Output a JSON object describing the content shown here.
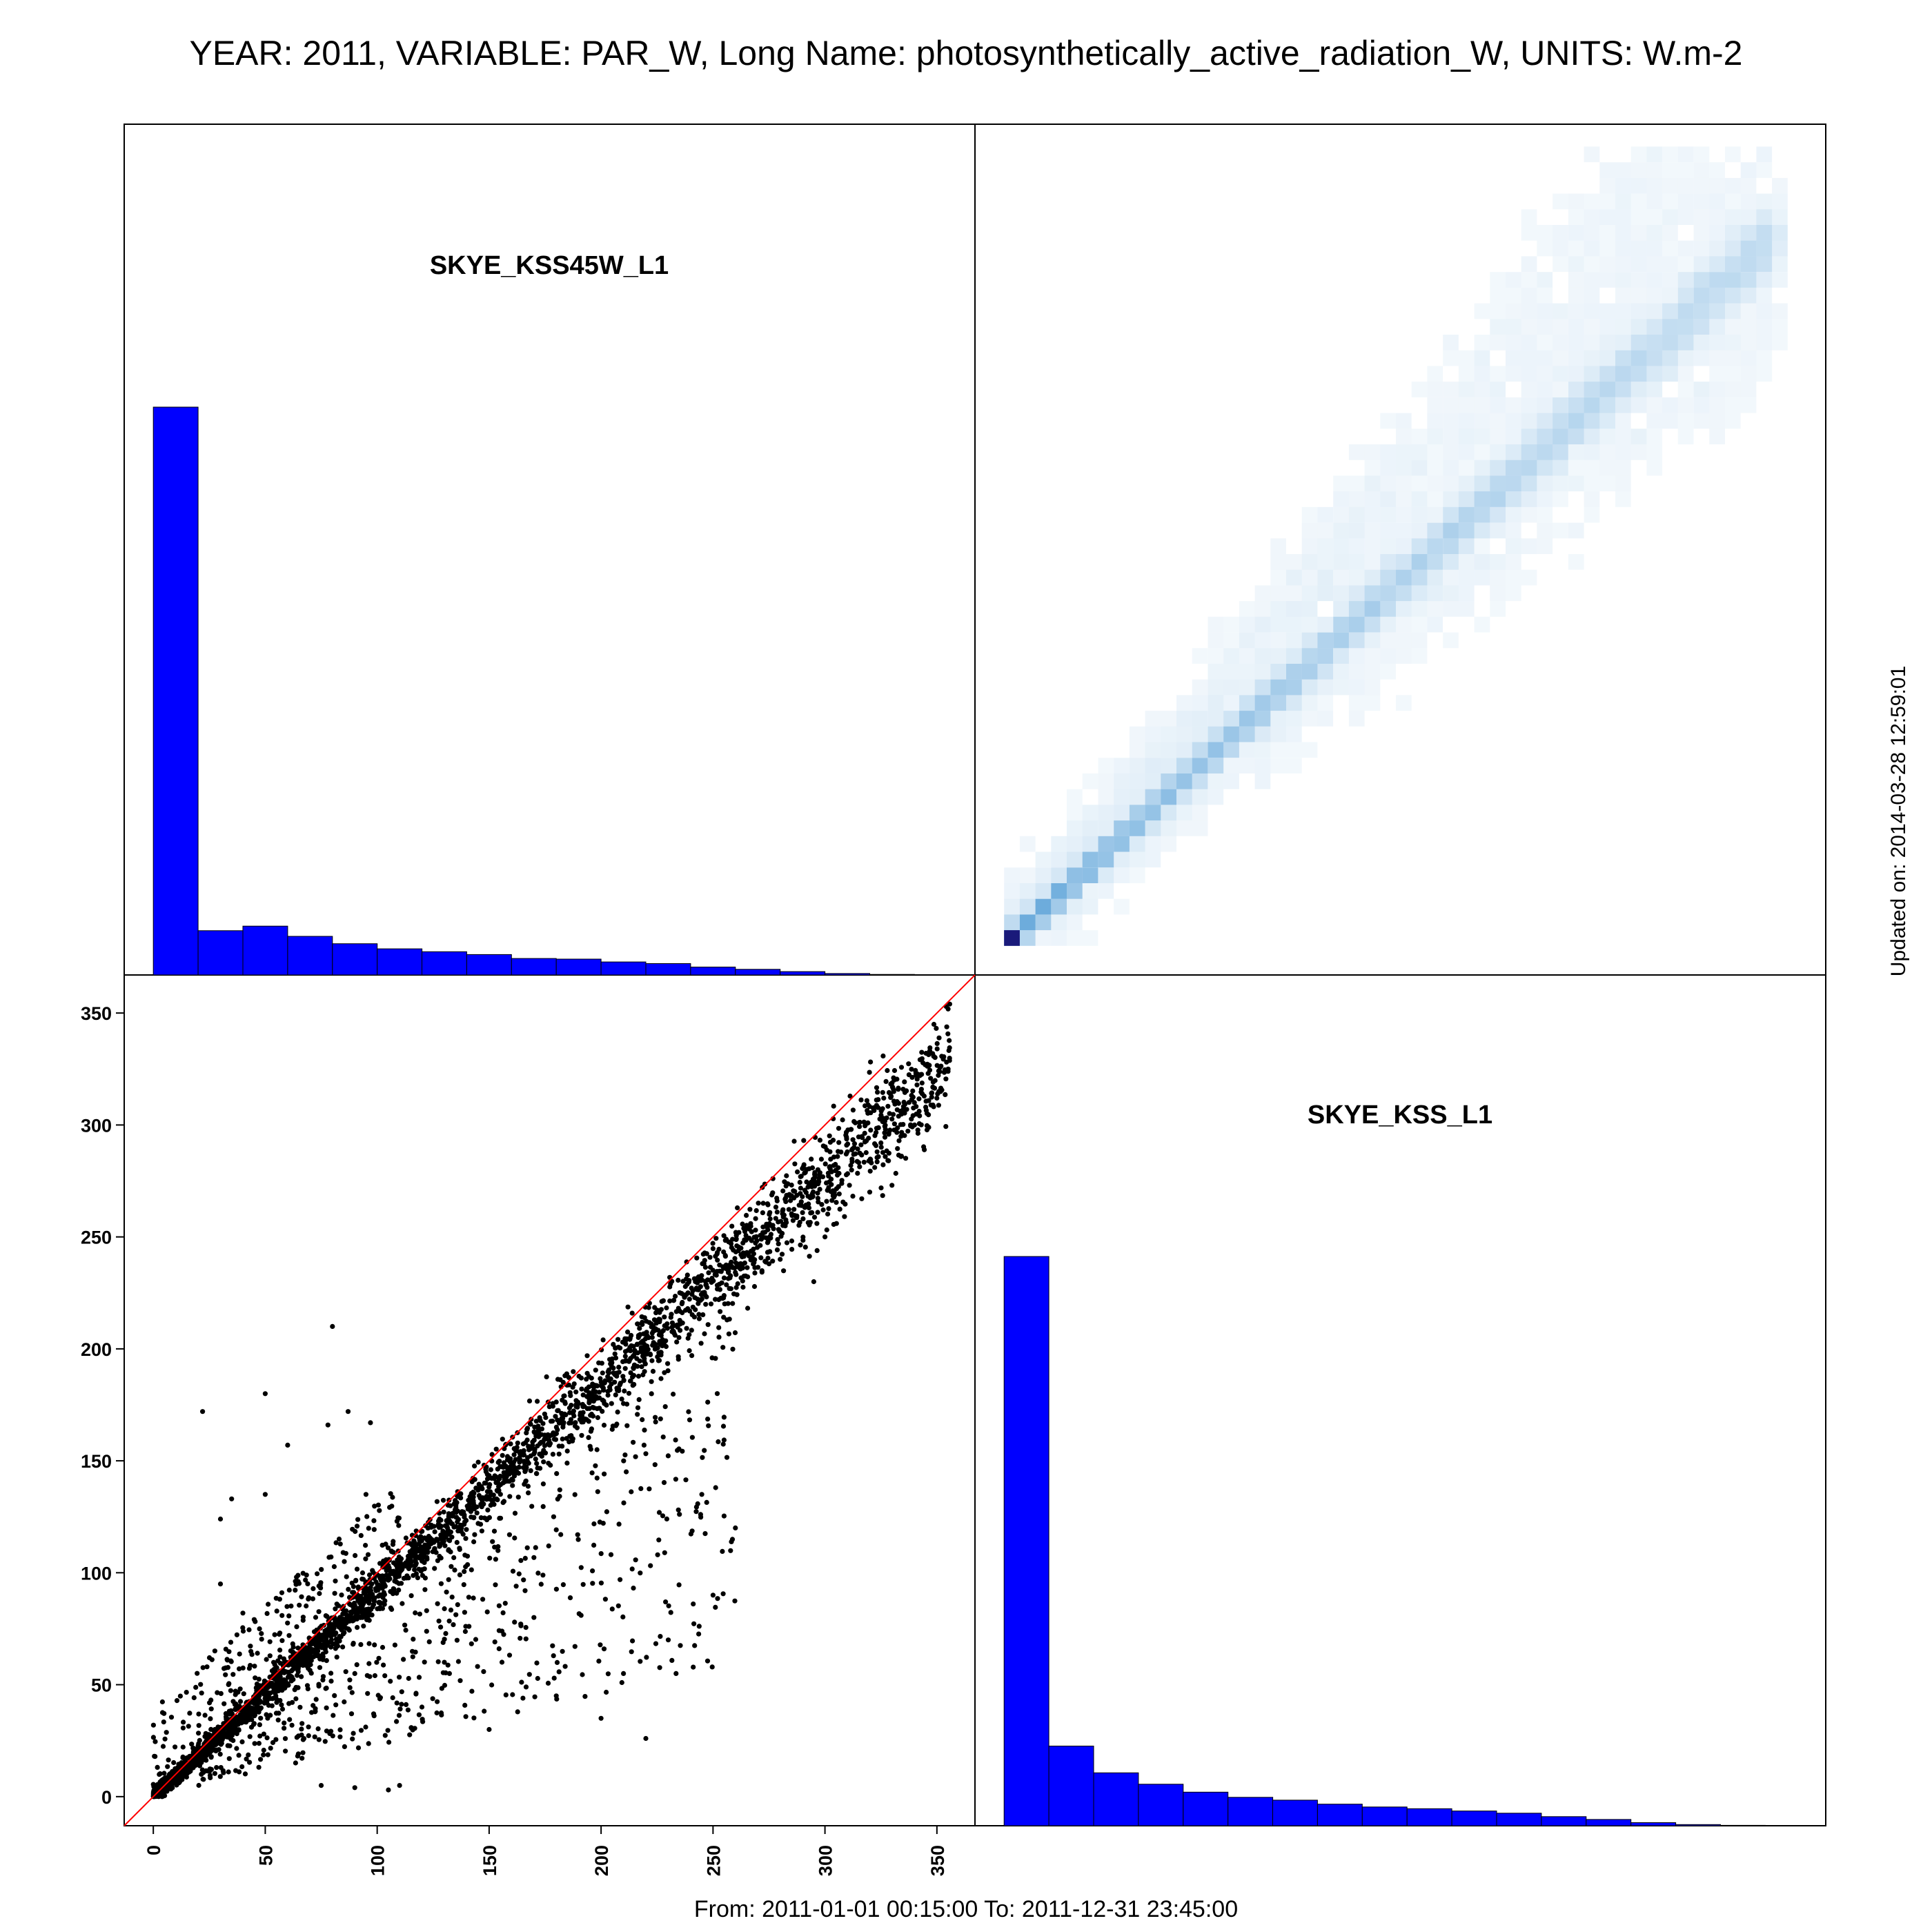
{
  "title": "YEAR: 2011, VARIABLE: PAR_W, Long Name: photosynthetically_active_radiation_W, UNITS: W.m-2",
  "footer": "From: 2011-01-01 00:15:00 To: 2011-12-31 23:45:00",
  "updated": "Updated on: 2014-03-28 12:59:01",
  "colors": {
    "histogram": "#0000ff",
    "identity_line": "#ff0000",
    "points": "#000000",
    "density": "#3a8fd0"
  },
  "chart_data": [
    {
      "type": "bar",
      "panel": "top-left",
      "label": "SKYE_KSS45W_L1",
      "bin_edges": [
        0,
        20,
        40,
        60,
        80,
        100,
        120,
        140,
        160,
        180,
        200,
        220,
        240,
        260,
        280,
        300,
        320,
        340,
        360
      ],
      "values": [
        100,
        7.8,
        8.6,
        6.8,
        5.5,
        4.6,
        4.1,
        3.6,
        2.9,
        2.8,
        2.3,
        2.0,
        1.4,
        1.0,
        0.6,
        0.25,
        0.1,
        0.04
      ],
      "ylabel": "",
      "xlabel": "",
      "scale_note": "relative frequency, tallest bin = 100"
    },
    {
      "type": "heatmap",
      "panel": "top-right",
      "description_free": true,
      "x_range": [
        0,
        360
      ],
      "y_range": [
        0,
        360
      ],
      "ridge": [
        [
          0,
          0
        ],
        [
          50,
          48
        ],
        [
          100,
          95
        ],
        [
          150,
          140
        ],
        [
          200,
          185
        ],
        [
          250,
          230
        ],
        [
          300,
          285
        ],
        [
          340,
          320
        ]
      ]
    },
    {
      "type": "scatter",
      "panel": "bottom-left",
      "xlabel": "",
      "ylabel": "",
      "xlim": [
        -13,
        367
      ],
      "ylim": [
        -13,
        367
      ],
      "xticks": [
        "0",
        "50",
        "100",
        "150",
        "200",
        "250",
        "300",
        "350"
      ],
      "yticks": [
        "0",
        "50",
        "100",
        "150",
        "200",
        "250",
        "300",
        "350"
      ],
      "identity_line": true,
      "trend": {
        "slope": 0.92,
        "x_max": 356
      },
      "outliers": [
        [
          80,
          210
        ],
        [
          22,
          172
        ],
        [
          50,
          180
        ],
        [
          60,
          157
        ],
        [
          78,
          166
        ],
        [
          87,
          172
        ],
        [
          97,
          167
        ],
        [
          30,
          124
        ],
        [
          35,
          133
        ],
        [
          50,
          135
        ],
        [
          95,
          135
        ],
        [
          30,
          95
        ],
        [
          40,
          82
        ],
        [
          70,
          70
        ],
        [
          90,
          55
        ],
        [
          120,
          40
        ],
        [
          150,
          30
        ],
        [
          180,
          45
        ],
        [
          200,
          35
        ],
        [
          220,
          26
        ],
        [
          75,
          5
        ],
        [
          90,
          4
        ],
        [
          105,
          3
        ],
        [
          110,
          5
        ],
        [
          130,
          60
        ],
        [
          170,
          80
        ],
        [
          210,
          55
        ],
        [
          230,
          70
        ],
        [
          250,
          90
        ],
        [
          260,
          120
        ],
        [
          245,
          135
        ],
        [
          280,
          240
        ],
        [
          295,
          230
        ],
        [
          300,
          250
        ],
        [
          320,
          270
        ],
        [
          340,
          300
        ],
        [
          355,
          325
        ],
        [
          350,
          312
        ]
      ]
    },
    {
      "type": "bar",
      "panel": "bottom-right",
      "label": "SKYE_KSS_L1",
      "bin_edges": [
        0,
        20,
        40,
        60,
        80,
        100,
        120,
        140,
        160,
        180,
        200,
        220,
        240,
        260,
        280,
        300,
        320,
        340
      ],
      "values": [
        100,
        14.0,
        9.3,
        7.3,
        5.9,
        5.0,
        4.5,
        3.8,
        3.3,
        3.0,
        2.6,
        2.2,
        1.6,
        1.1,
        0.55,
        0.2,
        0.07
      ],
      "ylabel": "",
      "xlabel": "",
      "scale_note": "relative frequency, tallest bin = 100"
    }
  ]
}
